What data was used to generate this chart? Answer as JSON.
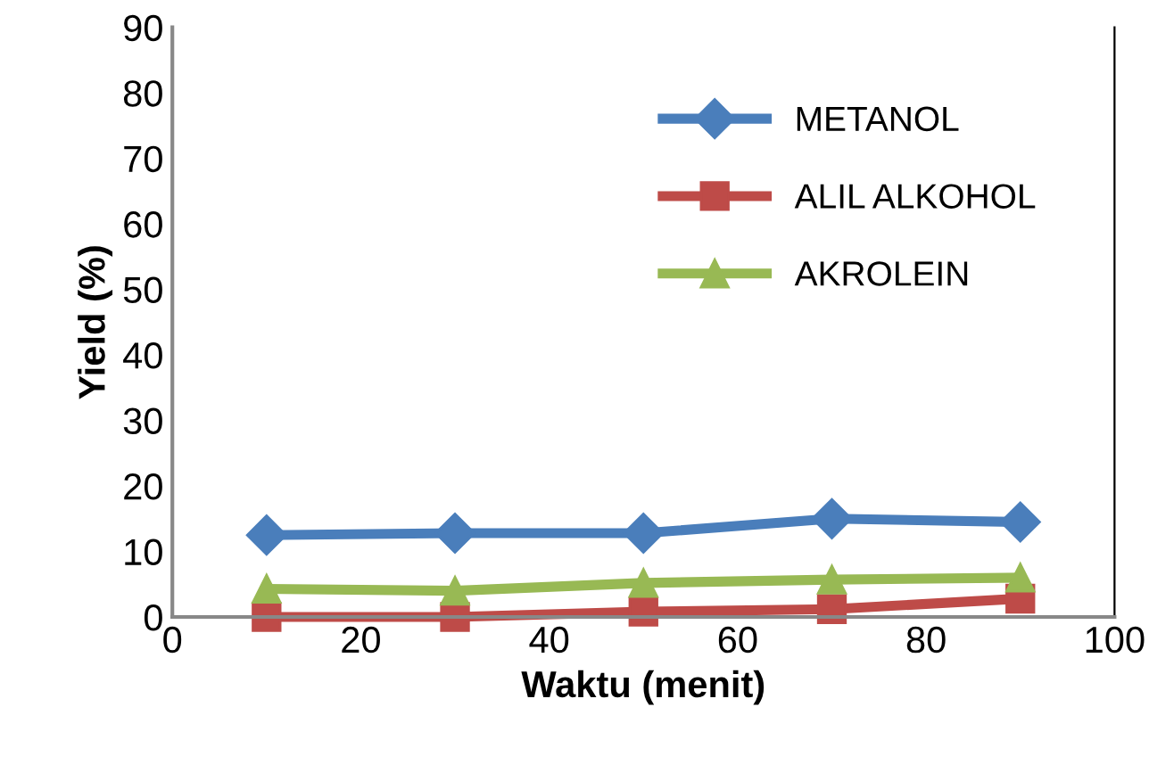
{
  "chart_data": {
    "type": "line",
    "xlabel": "Waktu (menit)",
    "ylabel": "Yield (%)",
    "x": [
      10,
      30,
      50,
      70,
      90
    ],
    "series": [
      {
        "name": "METANOL",
        "color": "#4a7ebb",
        "values": [
          12.5,
          12.8,
          12.8,
          15.0,
          14.5
        ],
        "marker": "diamond"
      },
      {
        "name": "ALIL ALKOHOL",
        "color": "#be4b48",
        "values": [
          0,
          0,
          0.8,
          1.2,
          2.8
        ],
        "marker": "square"
      },
      {
        "name": "AKROLEIN",
        "color": "#98b954",
        "values": [
          4.3,
          4.0,
          5.2,
          5.7,
          6.0
        ],
        "marker": "triangle"
      }
    ],
    "xlim": [
      0,
      100
    ],
    "xticks": [
      0,
      20,
      40,
      60,
      80,
      100
    ],
    "ylim": [
      0,
      90
    ],
    "yticks": [
      0,
      10,
      20,
      30,
      40,
      50,
      60,
      70,
      80,
      90
    ],
    "grid": false,
    "legend": "top right",
    "line_style": "solid"
  }
}
